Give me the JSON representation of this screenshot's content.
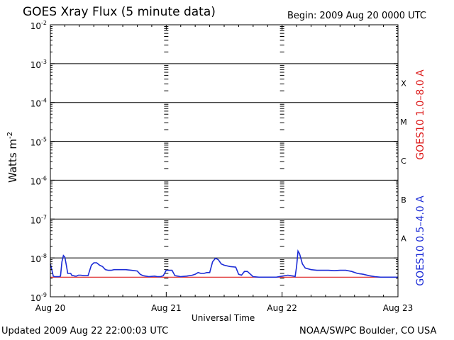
{
  "header": {
    "title": "GOES Xray Flux (5 minute data)",
    "begin": "Begin:  2009 Aug 20 0000 UTC"
  },
  "footer": {
    "updated": "Updated 2009 Aug 22 22:00:03 UTC",
    "credit": "NOAA/SWPC Boulder, CO USA"
  },
  "chart_data": {
    "type": "line",
    "title": "GOES Xray Flux (5 minute data)",
    "xlabel": "Universal Time",
    "ylabel": "Watts m",
    "ylabel_exponent": "-2",
    "xlim": [
      0,
      72
    ],
    "x_units": "hours since 2009 Aug 20 0000 UTC",
    "x_ticks": [
      {
        "value": 0,
        "label": "Aug 20"
      },
      {
        "value": 24,
        "label": "Aug 21"
      },
      {
        "value": 48,
        "label": "Aug 22"
      },
      {
        "value": 72,
        "label": "Aug 23"
      }
    ],
    "yscale": "log",
    "ylim": [
      1e-09,
      0.01
    ],
    "y_ticks": [
      {
        "value": 0.01,
        "base": "10",
        "exp": "-2"
      },
      {
        "value": 0.001,
        "base": "10",
        "exp": "-3"
      },
      {
        "value": 0.0001,
        "base": "10",
        "exp": "-4"
      },
      {
        "value": 1e-05,
        "base": "10",
        "exp": "-5"
      },
      {
        "value": 1e-06,
        "base": "10",
        "exp": "-6"
      },
      {
        "value": 1e-07,
        "base": "10",
        "exp": "-7"
      },
      {
        "value": 1e-08,
        "base": "10",
        "exp": "-8"
      },
      {
        "value": 1e-09,
        "base": "10",
        "exp": "-9"
      }
    ],
    "flare_classes": [
      {
        "label": "X",
        "value": 0.0001
      },
      {
        "label": "M",
        "value": 1e-05
      },
      {
        "label": "C",
        "value": 1e-06
      },
      {
        "label": "B",
        "value": 1e-07
      },
      {
        "label": "A",
        "value": 1e-08
      }
    ],
    "grid": true,
    "series": [
      {
        "name": "GOES10 1.0–8.0 A",
        "color": "#dd1c1c",
        "x": [
          0,
          72
        ],
        "y": [
          3.2e-09,
          3.2e-09
        ]
      },
      {
        "name": "GOES10 0.5–4.0 A",
        "color": "#1c2cd6",
        "x": [
          0,
          0.3,
          0.6,
          0.9,
          1.2,
          1.5,
          1.8,
          2.1,
          2.4,
          2.7,
          3.0,
          3.3,
          3.6,
          4.0,
          4.2,
          4.5,
          4.8,
          5.1,
          5.4,
          5.8,
          6.3,
          7.0,
          7.8,
          8.5,
          9.0,
          9.6,
          10.2,
          10.8,
          11.1,
          11.4,
          12.0,
          12.6,
          13.2,
          14.4,
          15.6,
          16.8,
          18.0,
          18.6,
          19.2,
          20.4,
          21.6,
          22.2,
          22.8,
          23.4,
          24.0,
          25.2,
          25.8,
          26.4,
          27.0,
          28.2,
          29.4,
          30.0,
          30.6,
          31.2,
          31.8,
          32.4,
          33.0,
          33.6,
          34.2,
          34.8,
          35.4,
          36.0,
          37.2,
          38.4,
          39.0,
          39.6,
          40.2,
          40.8,
          42.0,
          43.2,
          44.4,
          45.6,
          46.8,
          48.0,
          49.2,
          49.8,
          50.4,
          50.7,
          51.0,
          51.3,
          51.6,
          52.2,
          52.8,
          54.0,
          55.2,
          56.4,
          57.6,
          58.8,
          60.0,
          61.2,
          62.4,
          63.6,
          64.8,
          66.0,
          67.2,
          68.4,
          69.6,
          70.8,
          72.0
        ],
        "y": [
          7e-09,
          5e-09,
          3.4e-09,
          3.3e-09,
          3.3e-09,
          3.3e-09,
          3.3e-09,
          3.4e-09,
          8e-09,
          1.15e-08,
          1.05e-08,
          6.5e-09,
          4e-09,
          4e-09,
          4e-09,
          3.5e-09,
          3.5e-09,
          3.4e-09,
          3.4e-09,
          3.6e-09,
          3.6e-09,
          3.5e-09,
          3.5e-09,
          6.5e-09,
          7.5e-09,
          7.5e-09,
          6.5e-09,
          6e-09,
          5.5e-09,
          5e-09,
          4.8e-09,
          4.8e-09,
          5e-09,
          5e-09,
          5e-09,
          4.8e-09,
          4.6e-09,
          3.8e-09,
          3.5e-09,
          3.3e-09,
          3.4e-09,
          3.3e-09,
          3.3e-09,
          3.5e-09,
          4.8e-09,
          4.8e-09,
          3.5e-09,
          3.4e-09,
          3.3e-09,
          3.4e-09,
          3.6e-09,
          3.8e-09,
          4.2e-09,
          4e-09,
          4e-09,
          4.2e-09,
          4.2e-09,
          8e-09,
          9.8e-09,
          9e-09,
          7e-09,
          6.5e-09,
          6e-09,
          5.8e-09,
          3.8e-09,
          3.6e-09,
          4.5e-09,
          4.5e-09,
          3.3e-09,
          3.2e-09,
          3.2e-09,
          3.2e-09,
          3.2e-09,
          3.4e-09,
          3.6e-09,
          3.5e-09,
          3.4e-09,
          3.3e-09,
          6e-09,
          1.5e-08,
          1.3e-08,
          7e-09,
          5.5e-09,
          5e-09,
          4.8e-09,
          4.8e-09,
          4.8e-09,
          4.7e-09,
          4.8e-09,
          4.8e-09,
          4.5e-09,
          4e-09,
          3.8e-09,
          3.5e-09,
          3.3e-09,
          3.2e-09,
          3.2e-09,
          3.2e-09,
          3.2e-09
        ]
      }
    ]
  }
}
